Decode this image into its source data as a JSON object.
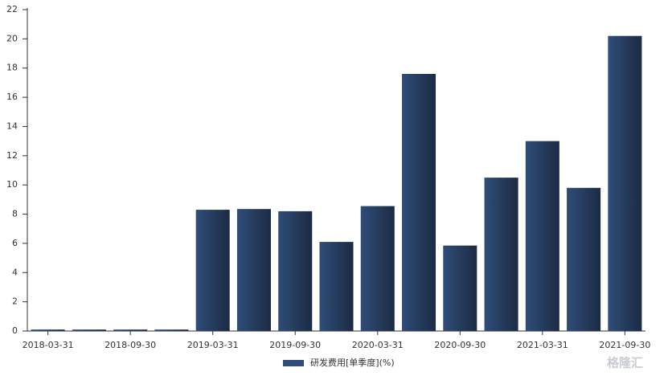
{
  "chart_data": {
    "type": "bar",
    "categories": [
      "2018-03-31",
      null,
      "2018-09-30",
      null,
      "2019-03-31",
      null,
      "2019-09-30",
      null,
      "2020-03-31",
      null,
      "2020-09-30",
      null,
      "2021-03-31",
      null,
      "2021-09-30"
    ],
    "series": [
      {
        "name": "研发费用[单季度](%)",
        "color": "#2f4d78",
        "values": [
          0.1,
          0.1,
          0.1,
          0.1,
          8.3,
          8.35,
          8.2,
          6.1,
          8.55,
          17.6,
          5.85,
          10.5,
          13.0,
          9.8,
          20.2
        ]
      }
    ],
    "ylim": [
      0,
      22
    ],
    "yticks": [
      0,
      2,
      4,
      6,
      8,
      10,
      12,
      14,
      16,
      18,
      20,
      22
    ],
    "grid": false,
    "legend": "bottom",
    "watermark": "格隆汇"
  }
}
